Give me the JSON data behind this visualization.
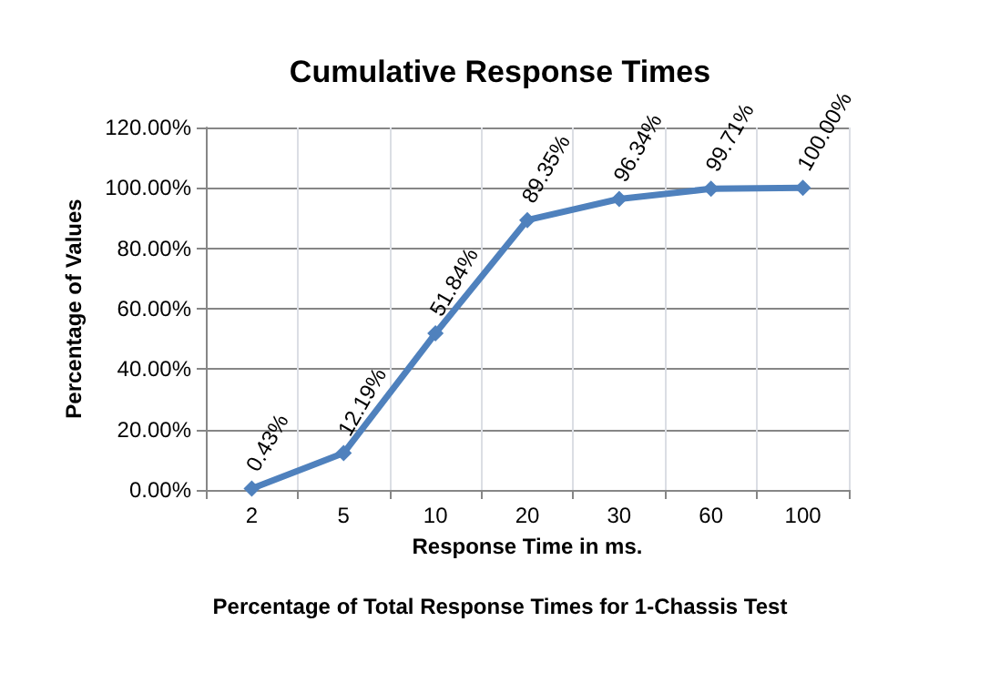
{
  "chart_data": {
    "type": "line",
    "title": "Cumulative Response Times",
    "xlabel": "Response Time in ms.",
    "ylabel": "Percentage of Values",
    "annotations": [
      "Percentage of Total Response Times for 1-Chassis Test"
    ],
    "categories": [
      "2",
      "5",
      "10",
      "20",
      "30",
      "60",
      "100"
    ],
    "series": [
      {
        "color": "#4f81bd",
        "values": [
          0.43,
          12.19,
          51.84,
          89.35,
          96.34,
          99.71,
          100
        ],
        "value_labels": [
          "0.43%",
          "12.19%",
          "51.84%",
          "89.35%",
          "96.34%",
          "99.71%",
          "100.00%"
        ]
      }
    ],
    "ylim": [
      0,
      120
    ],
    "yticks": [
      {
        "value": 0,
        "label": "0.00%"
      },
      {
        "value": 20,
        "label": "20.00%"
      },
      {
        "value": 40,
        "label": "40.00%"
      },
      {
        "value": 60,
        "label": "60.00%"
      },
      {
        "value": 80,
        "label": "80.00%"
      },
      {
        "value": 100,
        "label": "100.00%"
      },
      {
        "value": 120,
        "label": "120.00%"
      }
    ],
    "grid": true,
    "marker": "diamond",
    "line_style": "solid"
  }
}
